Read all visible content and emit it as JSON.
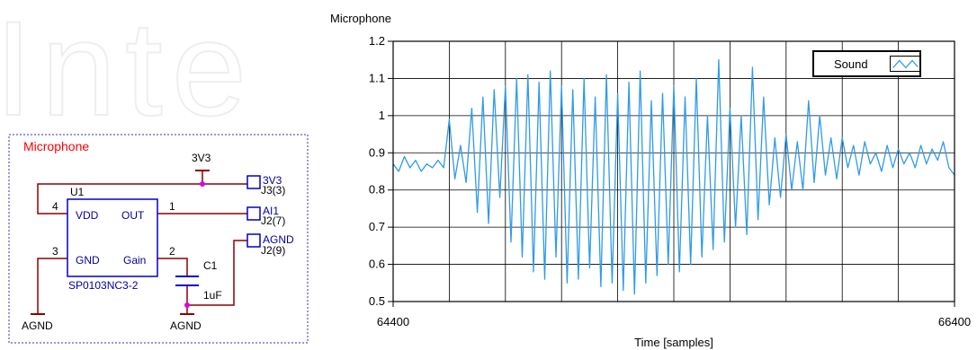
{
  "watermark": {
    "text": "Inte"
  },
  "schematic": {
    "title": "Microphone",
    "title_color": "#ff0000",
    "wire_color": "#8b0000",
    "component_color": "#0000c8",
    "node_color": "#e000e0",
    "power_label": "3V3",
    "ic": {
      "ref": "U1",
      "part": "SP0103NC3-2",
      "pins": [
        {
          "number": "4",
          "name": "VDD"
        },
        {
          "number": "1",
          "name": "OUT"
        },
        {
          "number": "3",
          "name": "GND"
        },
        {
          "number": "2",
          "name": "Gain"
        }
      ]
    },
    "capacitor": {
      "ref": "C1",
      "value": "1uF"
    },
    "ports": [
      {
        "name": "3V3",
        "ref": "J3(3)"
      },
      {
        "name": "AI1",
        "ref": "J2(7)"
      },
      {
        "name": "AGND",
        "ref": "J2(9)"
      }
    ],
    "ground_labels": [
      "AGND",
      "AGND"
    ]
  },
  "chart_data": {
    "type": "line",
    "title": "Microphone",
    "xlabel": "Time [samples]",
    "ylabel": "",
    "xlim": [
      64400,
      66400
    ],
    "ylim": [
      0.5,
      1.2
    ],
    "x_ticks": [
      64400,
      66400
    ],
    "x_tick_labels": [
      "64400",
      "66400"
    ],
    "y_ticks": [
      0.5,
      0.6,
      0.7,
      0.8,
      0.9,
      1.0,
      1.1,
      1.2
    ],
    "y_tick_labels": [
      "0.5",
      "0.6",
      "0.7",
      "0.8",
      "0.9",
      "1",
      "1.1",
      "1.2"
    ],
    "grid": true,
    "legend_position": "top-right",
    "series": [
      {
        "name": "Sound",
        "color": "#2f9be8",
        "x": [
          64400,
          64420,
          64440,
          64460,
          64480,
          64500,
          64520,
          64540,
          64560,
          64580,
          64600,
          64620,
          64640,
          64660,
          64680,
          64700,
          64720,
          64740,
          64760,
          64780,
          64800,
          64820,
          64840,
          64860,
          64880,
          64900,
          64920,
          64940,
          64960,
          64980,
          65000,
          65020,
          65040,
          65060,
          65080,
          65100,
          65120,
          65140,
          65160,
          65180,
          65200,
          65220,
          65240,
          65260,
          65280,
          65300,
          65320,
          65340,
          65360,
          65380,
          65400,
          65420,
          65440,
          65460,
          65480,
          65500,
          65520,
          65540,
          65560,
          65580,
          65600,
          65620,
          65640,
          65660,
          65680,
          65700,
          65720,
          65740,
          65760,
          65780,
          65800,
          65820,
          65840,
          65860,
          65880,
          65900,
          65920,
          65940,
          65960,
          65980,
          66000,
          66020,
          66040,
          66060,
          66080,
          66100,
          66120,
          66140,
          66160,
          66180,
          66200,
          66220,
          66240,
          66260,
          66280,
          66300,
          66320,
          66340,
          66360,
          66380,
          66400
        ],
        "y": [
          0.87,
          0.85,
          0.89,
          0.86,
          0.88,
          0.85,
          0.87,
          0.86,
          0.88,
          0.86,
          0.99,
          0.83,
          0.92,
          0.82,
          1.02,
          0.74,
          1.05,
          0.71,
          1.07,
          0.78,
          1.08,
          0.66,
          1.1,
          0.62,
          1.11,
          0.58,
          1.09,
          0.56,
          1.12,
          0.62,
          1.08,
          0.55,
          1.07,
          0.56,
          1.1,
          0.59,
          1.05,
          0.54,
          1.11,
          0.55,
          1.06,
          0.53,
          1.09,
          0.52,
          1.12,
          0.55,
          1.04,
          0.57,
          1.06,
          0.6,
          1.08,
          0.58,
          1.05,
          0.6,
          1.1,
          0.62,
          1.0,
          0.64,
          1.15,
          0.66,
          1.02,
          0.7,
          1.0,
          0.68,
          1.13,
          0.72,
          1.05,
          0.76,
          0.94,
          0.78,
          0.95,
          0.8,
          0.93,
          0.8,
          1.04,
          0.82,
          1.0,
          0.84,
          0.94,
          0.83,
          0.94,
          0.86,
          0.92,
          0.84,
          0.93,
          0.87,
          0.9,
          0.85,
          0.92,
          0.86,
          0.91,
          0.87,
          0.9,
          0.86,
          0.92,
          0.87,
          0.91,
          0.88,
          0.93,
          0.86,
          0.84
        ]
      }
    ]
  }
}
